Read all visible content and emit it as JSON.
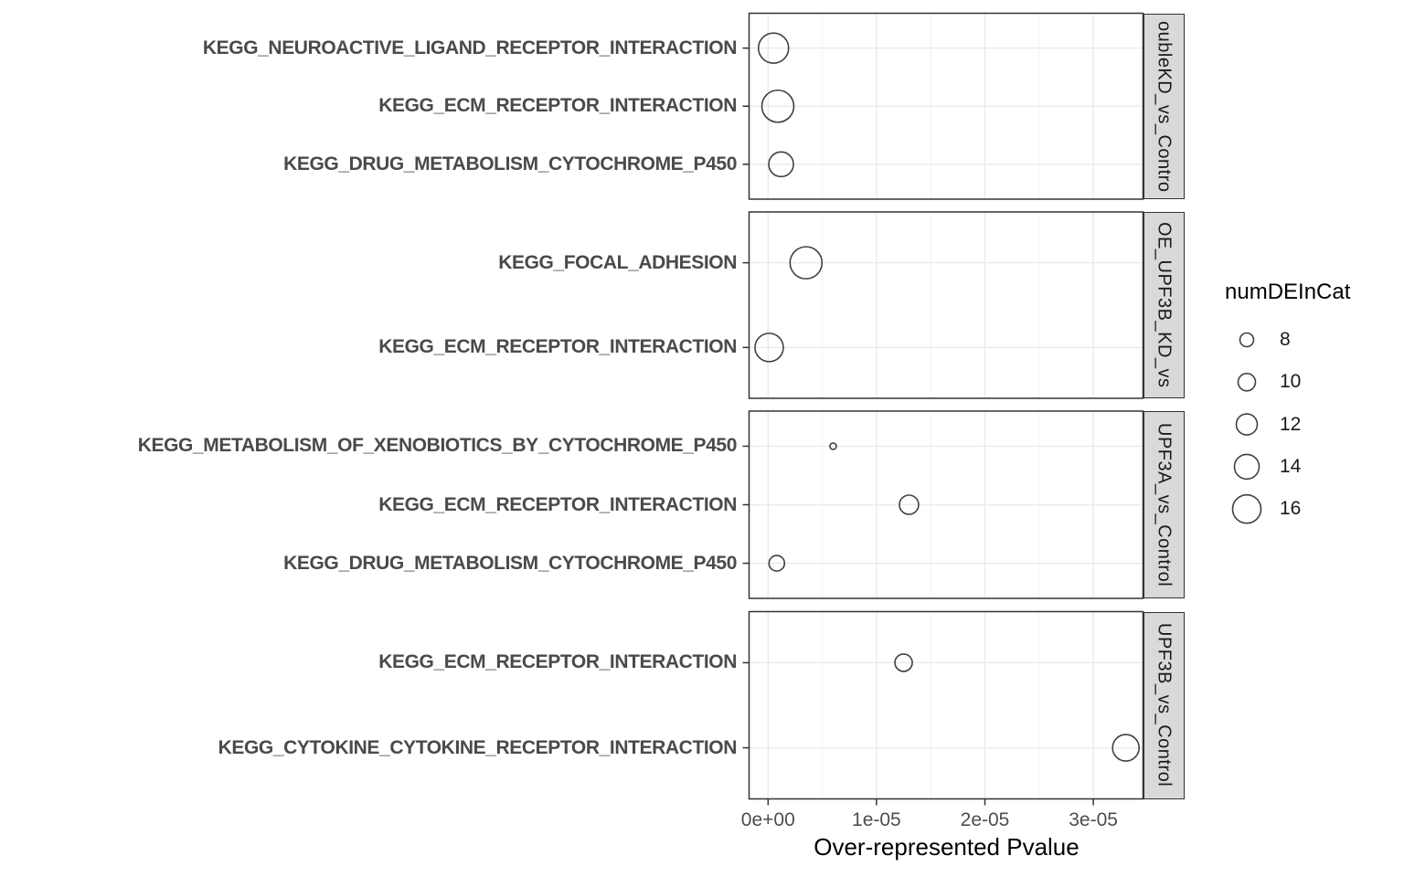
{
  "chart_data": {
    "type": "scatter",
    "subtype": "faceted_bubble_plot",
    "title": "",
    "xlabel": "Over-represented Pvalue",
    "x_tick_labels": [
      "0e+00",
      "1e-05",
      "2e-05",
      "3e-05"
    ],
    "x_tick_values": [
      0,
      1e-05,
      2e-05,
      3e-05
    ],
    "x_minor_tick_values": [
      5e-06,
      1.5e-05,
      2.5e-05
    ],
    "xlim": [
      -1.75e-06,
      3.46e-05
    ],
    "grid": "major and minor vertical, major horizontal per category",
    "legend_position": "right",
    "size_legend": {
      "title": "numDEInCat",
      "breaks": [
        8,
        10,
        12,
        14,
        16
      ]
    },
    "facets": [
      {
        "strip_label": "oubleKD_vs_Contro",
        "categories": [
          "KEGG_NEUROACTIVE_LIGAND_RECEPTOR_INTERACTION",
          "KEGG_ECM_RECEPTOR_INTERACTION",
          "KEGG_DRUG_METABOLISM_CYTOCHROME_P450"
        ],
        "points": [
          {
            "pathway": "KEGG_NEUROACTIVE_LIGAND_RECEPTOR_INTERACTION",
            "pvalue": 5e-07,
            "numDEInCat": 17
          },
          {
            "pathway": "KEGG_ECM_RECEPTOR_INTERACTION",
            "pvalue": 9e-07,
            "numDEInCat": 18
          },
          {
            "pathway": "KEGG_DRUG_METABOLISM_CYTOCHROME_P450",
            "pvalue": 1.2e-06,
            "numDEInCat": 14
          }
        ]
      },
      {
        "strip_label": "OE_UPF3B_KD_vs",
        "categories": [
          "KEGG_FOCAL_ADHESION",
          "KEGG_ECM_RECEPTOR_INTERACTION"
        ],
        "points": [
          {
            "pathway": "KEGG_FOCAL_ADHESION",
            "pvalue": 3.5e-06,
            "numDEInCat": 18
          },
          {
            "pathway": "KEGG_ECM_RECEPTOR_INTERACTION",
            "pvalue": 1e-07,
            "numDEInCat": 16
          }
        ]
      },
      {
        "strip_label": "UPF3A_vs_Control",
        "categories": [
          "KEGG_METABOLISM_OF_XENOBIOTICS_BY_CYTOCHROME_P450",
          "KEGG_ECM_RECEPTOR_INTERACTION",
          "KEGG_DRUG_METABOLISM_CYTOCHROME_P450"
        ],
        "points": [
          {
            "pathway": "KEGG_METABOLISM_OF_XENOBIOTICS_BY_CYTOCHROME_P450",
            "pvalue": 6e-06,
            "numDEInCat": 4
          },
          {
            "pathway": "KEGG_ECM_RECEPTOR_INTERACTION",
            "pvalue": 1.3e-05,
            "numDEInCat": 11
          },
          {
            "pathway": "KEGG_DRUG_METABOLISM_CYTOCHROME_P450",
            "pvalue": 8e-07,
            "numDEInCat": 9
          }
        ]
      },
      {
        "strip_label": "UPF3B_vs_Control",
        "categories": [
          "KEGG_ECM_RECEPTOR_INTERACTION",
          "KEGG_CYTOKINE_CYTOKINE_RECEPTOR_INTERACTION"
        ],
        "points": [
          {
            "pathway": "KEGG_ECM_RECEPTOR_INTERACTION",
            "pvalue": 1.25e-05,
            "numDEInCat": 10
          },
          {
            "pathway": "KEGG_CYTOKINE_CYTOKINE_RECEPTOR_INTERACTION",
            "pvalue": 3.3e-05,
            "numDEInCat": 15
          }
        ]
      }
    ],
    "colors": {
      "strip_fill": "#d9d9d9",
      "panel_border": "#333333",
      "grid_major": "#ebebeb",
      "grid_minor": "#f2f2f2",
      "point_stroke": "#404040",
      "axis_text": "#4d4d4d",
      "y_label_text": "#4a4a4a",
      "title_text": "#000000"
    }
  }
}
